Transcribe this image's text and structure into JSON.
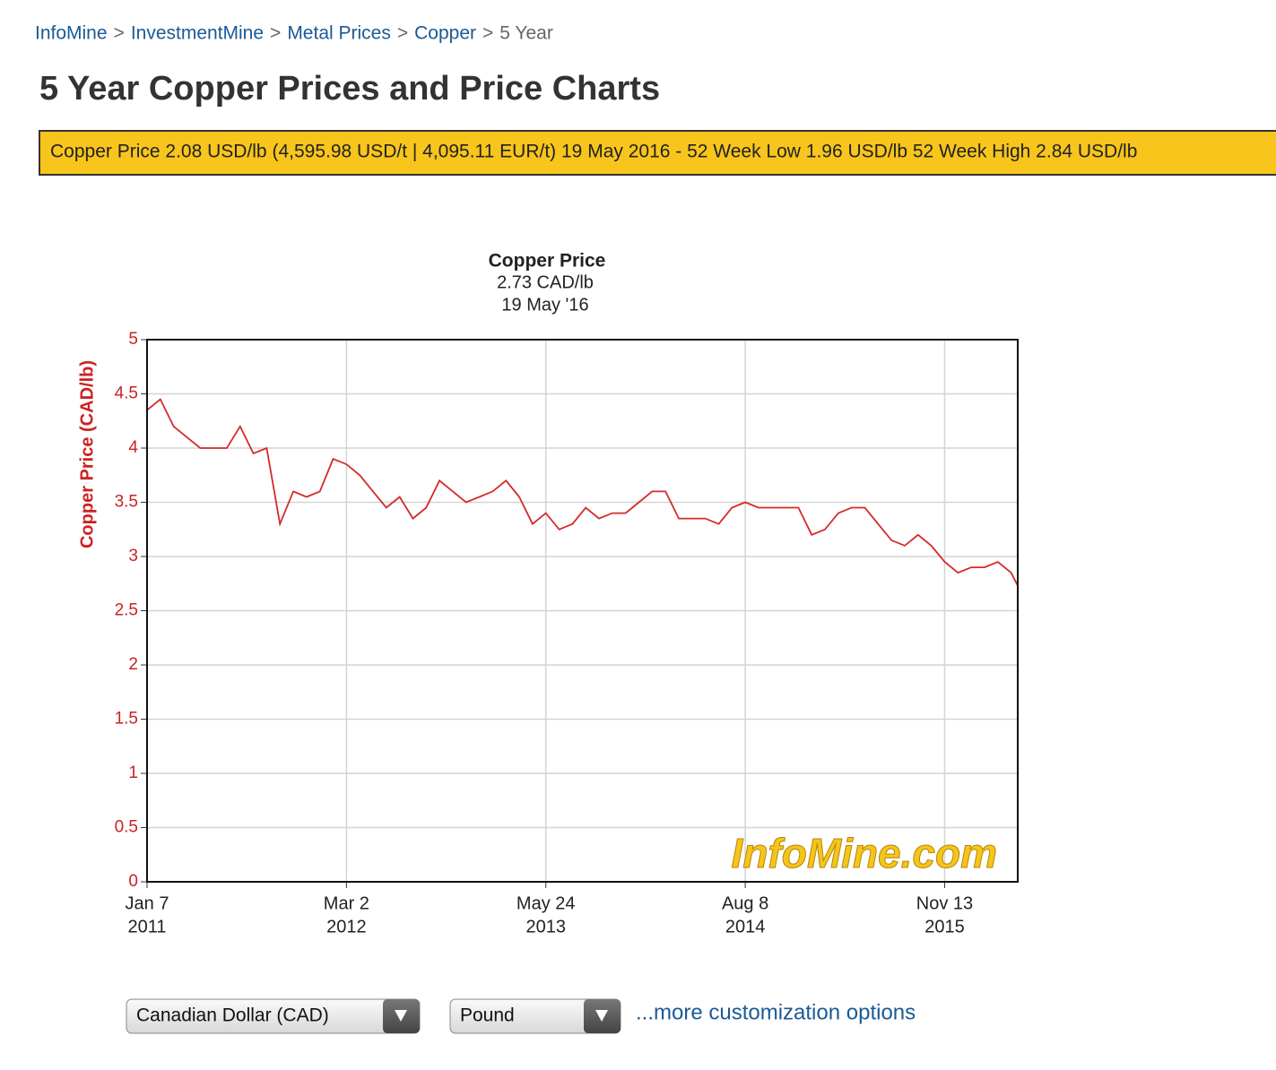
{
  "breadcrumb": {
    "links": [
      "InfoMine",
      "InvestmentMine",
      "Metal Prices",
      "Copper"
    ],
    "current": "5 Year",
    "separator": ">"
  },
  "heading": "5 Year Copper Prices and Price Charts",
  "banner": "Copper Price 2.08 USD/lb (4,595.98 USD/t | 4,095.11 EUR/t) 19 May 2016 - 52 Week Low 1.96 USD/lb 52 Week High 2.84 USD/lb",
  "chart_data": {
    "type": "line",
    "title": "Copper Price",
    "subtitle": [
      "2.73 CAD/lb",
      "19 May '16"
    ],
    "y_label": "Copper Price (CAD/lb)",
    "watermark": "InfoMine.com",
    "grid": true,
    "x": [
      0,
      4,
      8,
      12,
      16,
      20,
      24,
      28,
      32,
      36,
      40,
      44,
      48,
      52,
      56,
      60,
      64,
      68,
      72,
      76,
      80,
      84,
      88,
      92,
      96,
      100,
      104,
      108,
      112,
      116,
      120,
      124,
      128,
      132,
      136,
      140,
      144,
      148,
      152,
      156,
      160,
      164,
      168,
      172,
      176,
      180,
      184,
      188,
      192,
      196,
      200,
      204,
      208,
      212,
      216,
      220,
      224,
      228,
      232,
      236,
      240,
      244,
      248,
      252,
      256,
      260,
      262
    ],
    "series": [
      {
        "name": "Copper Price",
        "color": "#d42a2a",
        "values": [
          4.35,
          4.45,
          4.2,
          4.1,
          4.0,
          4.0,
          4.0,
          4.2,
          3.95,
          4.0,
          3.3,
          3.6,
          3.55,
          3.6,
          3.9,
          3.85,
          3.75,
          3.6,
          3.45,
          3.55,
          3.35,
          3.45,
          3.7,
          3.6,
          3.5,
          3.55,
          3.6,
          3.7,
          3.55,
          3.3,
          3.4,
          3.25,
          3.3,
          3.45,
          3.35,
          3.4,
          3.4,
          3.5,
          3.6,
          3.6,
          3.35,
          3.35,
          3.35,
          3.3,
          3.45,
          3.5,
          3.45,
          3.45,
          3.45,
          3.45,
          3.2,
          3.25,
          3.4,
          3.45,
          3.45,
          3.3,
          3.15,
          3.1,
          3.2,
          3.1,
          2.95,
          2.85,
          2.9,
          2.9,
          2.95,
          2.85,
          2.73
        ]
      }
    ],
    "xlim": [
      0,
      262
    ],
    "xticks": [
      {
        "value": 0,
        "label": [
          "Jan 7",
          "2011"
        ]
      },
      {
        "value": 60,
        "label": [
          "Mar 2",
          "2012"
        ]
      },
      {
        "value": 120,
        "label": [
          "May 24",
          "2013"
        ]
      },
      {
        "value": 180,
        "label": [
          "Aug 8",
          "2014"
        ]
      },
      {
        "value": 240,
        "label": [
          "Nov 13",
          "2015"
        ]
      }
    ],
    "ylim": [
      0,
      5
    ],
    "yticks": [
      0,
      0.5,
      1,
      1.5,
      2,
      2.5,
      3,
      3.5,
      4,
      4.5,
      5
    ]
  },
  "controls": {
    "currency": "Canadian Dollar (CAD)",
    "unit": "Pound",
    "more": "...more customization options"
  }
}
